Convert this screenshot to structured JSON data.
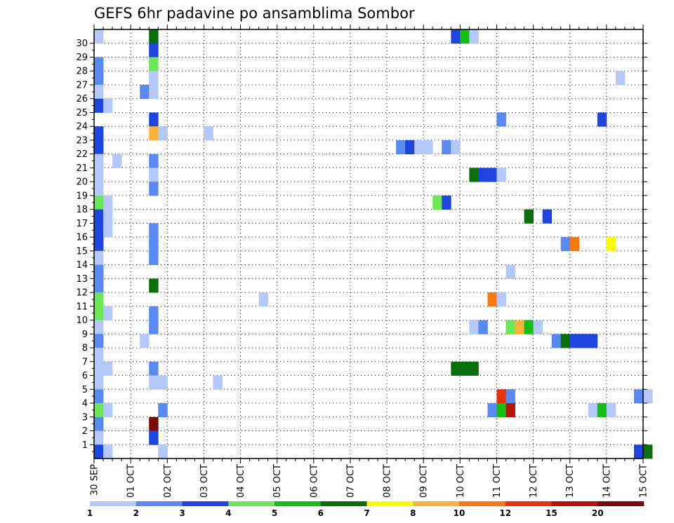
{
  "chart_data": {
    "type": "heatmap",
    "title": "GEFS 6hr padavine po ansamblima Sombor",
    "members": [
      "1",
      "2",
      "3",
      "4",
      "5",
      "6",
      "7",
      "8",
      "9",
      "10",
      "11",
      "12",
      "13",
      "14",
      "15",
      "16",
      "17",
      "18",
      "19",
      "20",
      "21",
      "22",
      "23",
      "24",
      "25",
      "26",
      "27",
      "28",
      "29",
      "30"
    ],
    "time_labels": [
      "30 SEP",
      "01 OCT",
      "02 OCT",
      "03 OCT",
      "04 OCT",
      "05 OCT",
      "06 OCT",
      "07 OCT",
      "08 OCT",
      "09 OCT",
      "10 OCT",
      "11 OCT",
      "12 OCT",
      "13 OCT",
      "14 OCT",
      "15 OCT"
    ],
    "steps_per_day": 4,
    "colorbar": {
      "labels": [
        "1",
        "2",
        "3",
        "4",
        "5",
        "6",
        "7",
        "8",
        "10",
        "12",
        "15",
        "20"
      ],
      "colors": [
        "#b4c8fa",
        "#5a8af0",
        "#1e46dc",
        "#6ee65a",
        "#14be14",
        "#0a6e0a",
        "#fafa0a",
        "#fab43c",
        "#fa7814",
        "#e6320a",
        "#b4140a",
        "#7d0a0a"
      ]
    },
    "cells": [
      [
        30,
        0,
        0
      ],
      [
        30,
        6,
        5
      ],
      [
        30,
        39,
        2
      ],
      [
        30,
        40,
        4
      ],
      [
        30,
        41,
        0
      ],
      [
        29,
        6,
        2
      ],
      [
        28,
        0,
        1
      ],
      [
        28,
        6,
        3
      ],
      [
        27,
        0,
        1
      ],
      [
        27,
        6,
        0
      ],
      [
        27,
        57,
        0
      ],
      [
        26,
        0,
        0
      ],
      [
        26,
        5,
        1
      ],
      [
        26,
        6,
        0
      ],
      [
        25,
        0,
        2
      ],
      [
        25,
        1,
        0
      ],
      [
        24,
        6,
        2
      ],
      [
        24,
        44,
        1
      ],
      [
        24,
        55,
        2
      ],
      [
        23,
        0,
        2
      ],
      [
        23,
        6,
        7
      ],
      [
        23,
        7,
        0
      ],
      [
        23,
        12,
        0
      ],
      [
        22,
        0,
        2
      ],
      [
        22,
        33,
        1
      ],
      [
        22,
        34,
        2
      ],
      [
        22,
        35,
        0
      ],
      [
        22,
        36,
        0
      ],
      [
        22,
        38,
        1
      ],
      [
        22,
        39,
        0
      ],
      [
        21,
        0,
        0
      ],
      [
        21,
        2,
        0
      ],
      [
        21,
        6,
        1
      ],
      [
        20,
        0,
        0
      ],
      [
        20,
        6,
        0
      ],
      [
        20,
        41,
        5
      ],
      [
        20,
        42,
        2
      ],
      [
        20,
        43,
        2
      ],
      [
        20,
        44,
        0
      ],
      [
        19,
        0,
        0
      ],
      [
        19,
        6,
        1
      ],
      [
        18,
        0,
        3
      ],
      [
        18,
        1,
        0
      ],
      [
        18,
        37,
        3
      ],
      [
        18,
        38,
        2
      ],
      [
        17,
        0,
        2
      ],
      [
        17,
        1,
        0
      ],
      [
        17,
        47,
        5
      ],
      [
        17,
        49,
        2
      ],
      [
        16,
        0,
        2
      ],
      [
        16,
        1,
        0
      ],
      [
        16,
        6,
        1
      ],
      [
        15,
        0,
        2
      ],
      [
        15,
        6,
        1
      ],
      [
        15,
        51,
        1
      ],
      [
        15,
        52,
        8
      ],
      [
        15,
        56,
        6
      ],
      [
        14,
        0,
        0
      ],
      [
        14,
        6,
        1
      ],
      [
        13,
        0,
        1
      ],
      [
        13,
        45,
        0
      ],
      [
        12,
        0,
        1
      ],
      [
        12,
        6,
        5
      ],
      [
        11,
        0,
        3
      ],
      [
        11,
        18,
        0
      ],
      [
        11,
        43,
        8
      ],
      [
        11,
        44,
        0
      ],
      [
        10,
        0,
        3
      ],
      [
        10,
        1,
        0
      ],
      [
        10,
        6,
        1
      ],
      [
        9,
        0,
        0
      ],
      [
        9,
        6,
        1
      ],
      [
        9,
        41,
        0
      ],
      [
        9,
        42,
        1
      ],
      [
        9,
        45,
        3
      ],
      [
        9,
        46,
        7
      ],
      [
        9,
        47,
        4
      ],
      [
        9,
        48,
        0
      ],
      [
        8,
        0,
        1
      ],
      [
        8,
        5,
        0
      ],
      [
        8,
        50,
        1
      ],
      [
        8,
        51,
        5
      ],
      [
        8,
        52,
        2
      ],
      [
        8,
        53,
        2
      ],
      [
        8,
        54,
        2
      ],
      [
        7,
        0,
        0
      ],
      [
        6,
        0,
        0
      ],
      [
        6,
        1,
        0
      ],
      [
        6,
        6,
        1
      ],
      [
        6,
        39,
        5
      ],
      [
        6,
        40,
        5
      ],
      [
        6,
        41,
        5
      ],
      [
        5,
        0,
        0
      ],
      [
        5,
        6,
        0
      ],
      [
        5,
        7,
        0
      ],
      [
        5,
        13,
        0
      ],
      [
        4,
        0,
        1
      ],
      [
        4,
        44,
        9
      ],
      [
        4,
        45,
        1
      ],
      [
        4,
        59,
        1
      ],
      [
        4,
        60,
        0
      ],
      [
        3,
        0,
        3
      ],
      [
        3,
        1,
        0
      ],
      [
        3,
        7,
        1
      ],
      [
        3,
        43,
        1
      ],
      [
        3,
        44,
        4
      ],
      [
        3,
        45,
        10
      ],
      [
        3,
        54,
        0
      ],
      [
        3,
        55,
        4
      ],
      [
        3,
        56,
        0
      ],
      [
        2,
        0,
        1
      ],
      [
        2,
        6,
        11
      ],
      [
        1,
        0,
        0
      ],
      [
        1,
        6,
        2
      ],
      [
        0,
        0,
        2
      ],
      [
        0,
        1,
        0
      ],
      [
        0,
        7,
        0
      ],
      [
        0,
        59,
        2
      ],
      [
        0,
        60,
        5
      ]
    ]
  }
}
